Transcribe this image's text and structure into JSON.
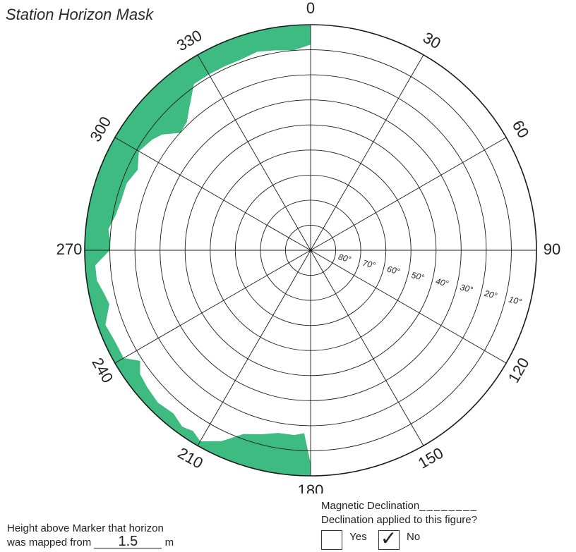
{
  "title": "Station Horizon Mask",
  "chart_data": {
    "type": "polar-area",
    "title": "Station Horizon Mask",
    "azimuth_labels": [
      "0",
      "30",
      "60",
      "90",
      "120",
      "150",
      "180",
      "210",
      "240",
      "270",
      "300",
      "330"
    ],
    "elevation_ring_labels": [
      "80°",
      "70°",
      "60°",
      "50°",
      "40°",
      "30°",
      "20°",
      "10°"
    ],
    "elevation_rings": [
      80,
      70,
      60,
      50,
      40,
      30,
      20,
      10,
      0
    ],
    "fill_color": "#3dbb80",
    "mask": {
      "azimuth_deg": [
        180,
        182,
        185,
        190,
        195,
        200,
        205,
        210,
        213,
        216,
        220,
        225,
        230,
        234,
        237,
        240,
        245,
        250,
        255,
        258,
        262,
        266,
        270,
        273,
        276,
        280,
        285,
        290,
        295,
        300,
        305,
        308,
        312,
        316,
        320,
        325,
        330,
        335,
        340,
        345,
        350,
        355,
        360
      ],
      "elevation_deg": [
        5,
        17,
        16,
        16,
        14,
        12,
        6,
        2,
        4,
        3,
        5,
        4,
        5,
        6,
        9,
        4,
        4,
        3,
        7,
        6,
        4,
        4,
        10,
        10,
        9,
        11,
        12,
        12,
        14,
        11,
        13,
        15,
        20,
        19,
        15,
        9,
        9,
        9,
        9,
        8,
        9,
        10,
        8
      ]
    }
  },
  "height_field": {
    "line1": "Height above Marker that horizon",
    "prefix": "was mapped from",
    "value": "1.5",
    "unit": "m"
  },
  "declination": {
    "label": "Magnetic Declination",
    "question": "Declination applied to this figure?",
    "yes_label": "Yes",
    "no_label": "No",
    "yes_checked": false,
    "no_checked": true,
    "check_mark": "✓"
  }
}
